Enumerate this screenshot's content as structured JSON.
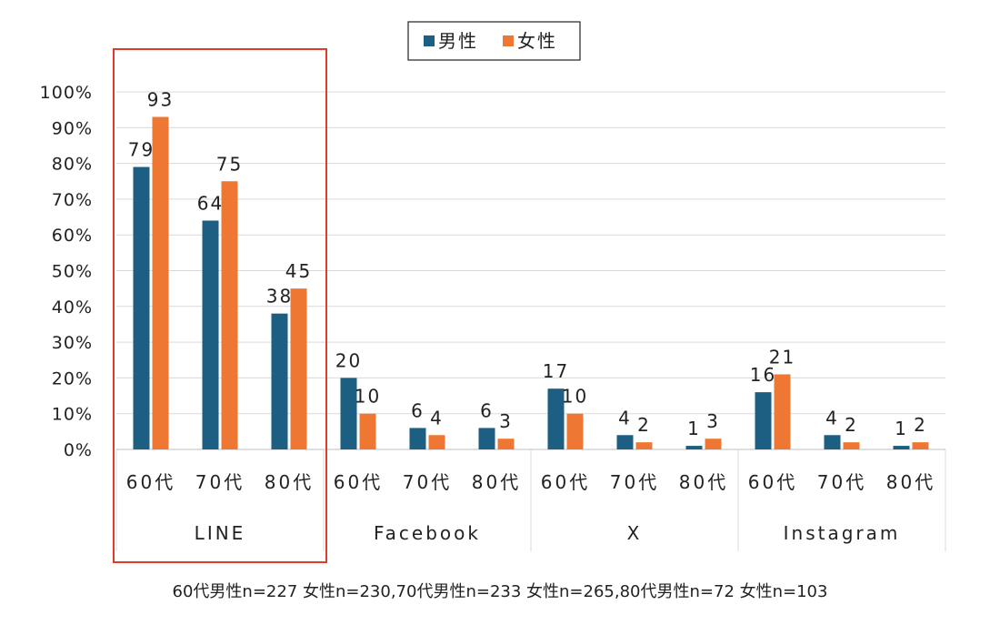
{
  "chart_data": {
    "type": "bar",
    "legend": {
      "placement": "top-center"
    },
    "series": [
      {
        "name": "男性",
        "color": "#1c5f82",
        "values": [
          79,
          64,
          38,
          20,
          6,
          6,
          17,
          4,
          1,
          16,
          4,
          1
        ]
      },
      {
        "name": "女性",
        "color": "#ee7733",
        "values": [
          93,
          75,
          45,
          10,
          4,
          3,
          10,
          2,
          3,
          21,
          2,
          2
        ]
      }
    ],
    "categories": [
      "60代",
      "70代",
      "80代",
      "60代",
      "70代",
      "80代",
      "60代",
      "70代",
      "80代",
      "60代",
      "70代",
      "80代"
    ],
    "groups": [
      {
        "label": "LINE",
        "size": 3,
        "highlighted": true
      },
      {
        "label": "Facebook",
        "size": 3
      },
      {
        "label": "X",
        "size": 3
      },
      {
        "label": "Instagram",
        "size": 3
      }
    ],
    "ylim": [
      0,
      100
    ],
    "yticks": [
      "0%",
      "10%",
      "20%",
      "30%",
      "40%",
      "50%",
      "60%",
      "70%",
      "80%",
      "90%",
      "100%"
    ],
    "grid": true,
    "highlight_color": "#e03c2c",
    "note": "60代男性n=227 女性n=230,70代男性n=233 女性n=265,80代男性n=72 女性n=103"
  }
}
